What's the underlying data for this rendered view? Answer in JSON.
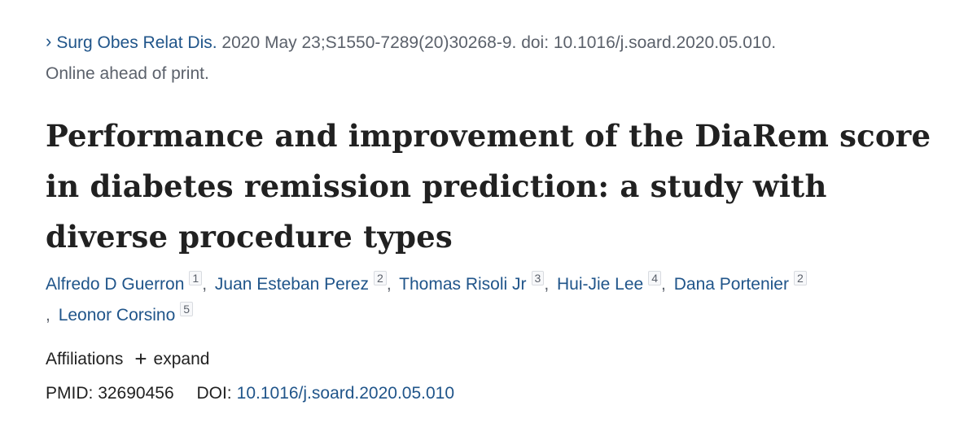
{
  "citation": {
    "journal": "Surg Obes Relat Dis.",
    "details": "2020 May 23;S1550-7289(20)30268-9. doi: 10.1016/j.soard.2020.05.010.",
    "status": "Online ahead of print."
  },
  "article": {
    "title": "Performance and improvement of the DiaRem score in diabetes remission prediction: a study with diverse procedure types"
  },
  "authors": [
    {
      "name": "Alfredo D Guerron",
      "aff": "1"
    },
    {
      "name": "Juan Esteban Perez",
      "aff": "2"
    },
    {
      "name": "Thomas Risoli Jr",
      "aff": "3"
    },
    {
      "name": "Hui-Jie Lee",
      "aff": "4"
    },
    {
      "name": "Dana Portenier",
      "aff": "2"
    },
    {
      "name": "Leonor Corsino",
      "aff": "5"
    }
  ],
  "affiliations": {
    "label": "Affiliations",
    "expand_label": "expand",
    "icon": "plus-icon"
  },
  "identifiers": {
    "pmid_label": "PMID:",
    "pmid": "32690456",
    "doi_label": "DOI:",
    "doi": "10.1016/j.soard.2020.05.010"
  },
  "colors": {
    "link": "#20558a",
    "text": "#212121",
    "muted": "#5b616b"
  }
}
